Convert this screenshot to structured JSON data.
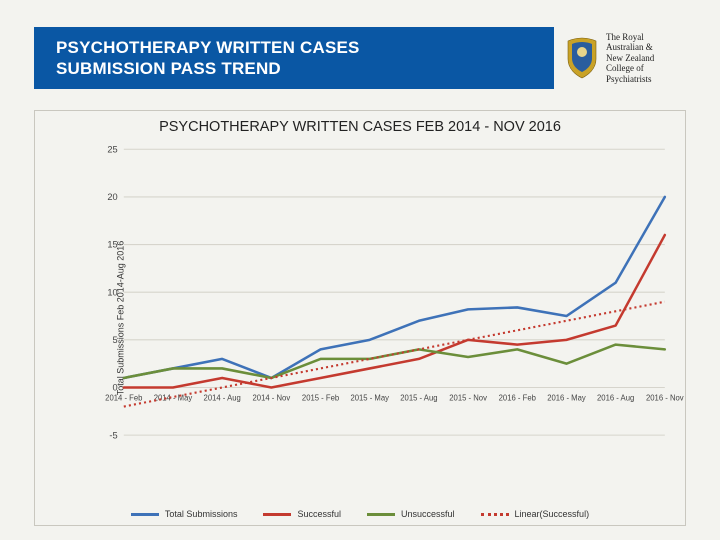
{
  "header": {
    "title_line1": "PSYCHOTHERAPY WRITTEN CASES",
    "title_line2": "SUBMISSION PASS TREND",
    "bar_color": "#0a57a4",
    "org_name_l1": "The Royal",
    "org_name_l2": "Australian &",
    "org_name_l3": "New Zealand",
    "org_name_l4": "College of",
    "org_name_l5": "Psychiatrists",
    "crest_outer": "#c9a227",
    "crest_inner": "#2a5d9e"
  },
  "chart": {
    "title": "PSYCHOTHERAPY WRITTEN CASES FEB 2014 - NOV 2016",
    "title_fontsize": 14.5,
    "background_color": "#f3f3ef",
    "border_color": "#c9c7bf",
    "grid_color": "#d6d4cc",
    "y_axis_label": "Total Submissions Feb 2014-Aug 2016",
    "y_axis_label_fontsize": 9,
    "tick_fontsize": 9,
    "x_tick_fontsize": 7.5,
    "ylim": [
      -5,
      25
    ],
    "ytick_step": 5,
    "categories": [
      "2014 - Feb",
      "2014 - May",
      "2014 - Aug",
      "2014 - Nov",
      "2015 - Feb",
      "2015 - May",
      "2015 - Aug",
      "2015 - Nov",
      "2016 - Feb",
      "2016 - May",
      "2016 - Aug",
      "2016 - Nov"
    ],
    "series": {
      "total": {
        "label": "Total Submissions",
        "color": "#3e72b8",
        "width": 2.6,
        "values": [
          1,
          2,
          3,
          1,
          4,
          5,
          7,
          8.2,
          8.4,
          7.5,
          11,
          20
        ]
      },
      "successful": {
        "label": "Successful",
        "color": "#c43a2f",
        "width": 2.4,
        "values": [
          0,
          0,
          1,
          0,
          1,
          2,
          3,
          5,
          4.5,
          5,
          6.5,
          16
        ]
      },
      "unsuccessful": {
        "label": "Unsuccessful",
        "color": "#6b8e3a",
        "width": 2.4,
        "values": [
          1,
          2,
          2,
          1,
          3,
          3,
          4,
          3.2,
          4,
          2.5,
          4.5,
          4
        ]
      }
    },
    "trend": {
      "label": "Linear(Successful)",
      "color": "#c43a2f",
      "width": 2,
      "dash": "2 3",
      "start_y": -2.0,
      "end_y": 9.0
    },
    "line_width_default": 2.4
  },
  "legend": {
    "fontsize": 9,
    "swatch_width": 28
  }
}
